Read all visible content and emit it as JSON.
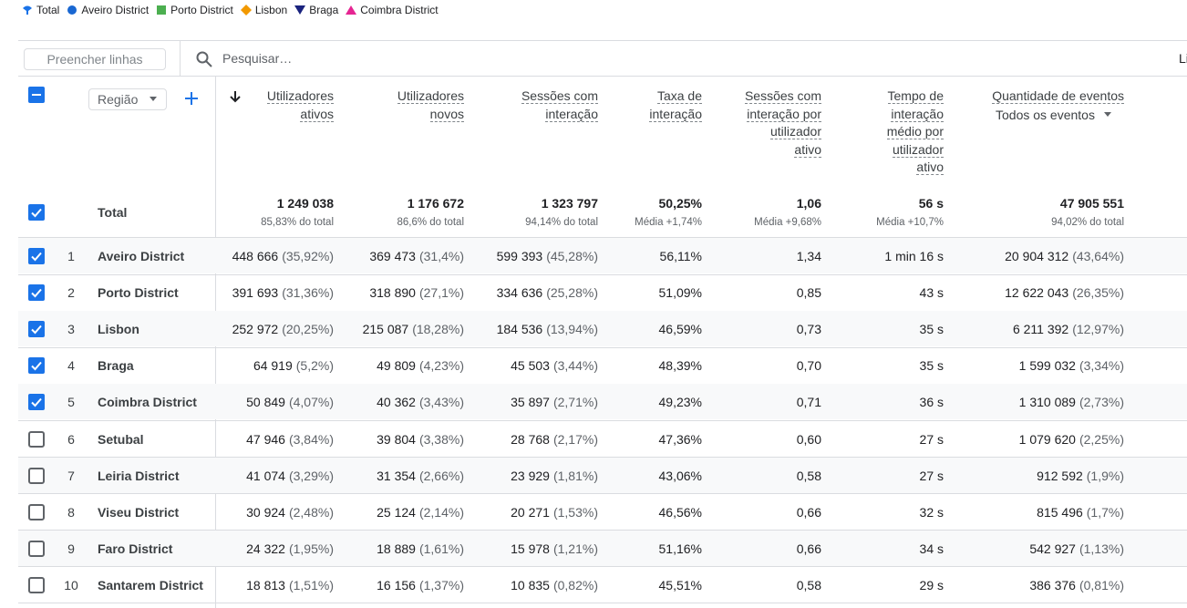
{
  "legend": [
    {
      "name": "Total",
      "color": "#1a73e8",
      "marker": "pin"
    },
    {
      "name": "Aveiro District",
      "color": "#1967d2",
      "marker": "circle"
    },
    {
      "name": "Porto District",
      "color": "#4caf50",
      "marker": "square"
    },
    {
      "name": "Lisbon",
      "color": "#f29900",
      "marker": "diamond"
    },
    {
      "name": "Braga",
      "color": "#1a237e",
      "marker": "triangle-down"
    },
    {
      "name": "Coimbra District",
      "color": "#e52592",
      "marker": "triangle-up"
    }
  ],
  "toolbar": {
    "fill_rows": "Preencher linhas",
    "search_placeholder": "Pesquisar…",
    "cut_label": "Li"
  },
  "table": {
    "dimension": "Região",
    "select_all": "indeterminate",
    "columns": [
      {
        "title": "Utilizadores ativos",
        "sorted": true
      },
      {
        "title": "Utilizadores novos"
      },
      {
        "title": "Sessões com interação"
      },
      {
        "title": "Taxa de interação"
      },
      {
        "title": "Sessões com interação por utilizador ativo"
      },
      {
        "title": "Tempo de interação médio por utilizador ativo"
      },
      {
        "title": "Quantidade de eventos",
        "subtitle": "Todos os eventos"
      }
    ],
    "totals": {
      "label": "Total",
      "checked": true,
      "cells": [
        {
          "value": "1 249 038",
          "note": "85,83% do total"
        },
        {
          "value": "1 176 672",
          "note": "86,6% do total"
        },
        {
          "value": "1 323 797",
          "note": "94,14% do total"
        },
        {
          "value": "50,25%",
          "note": "Média +1,74%"
        },
        {
          "value": "1,06",
          "note": "Média +9,68%"
        },
        {
          "value": "56 s",
          "note": "Média +10,7%"
        },
        {
          "value": "47 905 551",
          "note": "94,02% do total"
        }
      ]
    },
    "rows": [
      {
        "rank": 1,
        "name": "Aveiro District",
        "checked": true,
        "cells": [
          {
            "value": "448 666",
            "share": "(35,92%)"
          },
          {
            "value": "369 473",
            "share": "(31,4%)"
          },
          {
            "value": "599 393",
            "share": "(45,28%)"
          },
          {
            "value": "56,11%"
          },
          {
            "value": "1,34"
          },
          {
            "value": "1 min 16 s"
          },
          {
            "value": "20 904 312",
            "share": "(43,64%)"
          }
        ]
      },
      {
        "rank": 2,
        "name": "Porto District",
        "checked": true,
        "cells": [
          {
            "value": "391 693",
            "share": "(31,36%)"
          },
          {
            "value": "318 890",
            "share": "(27,1%)"
          },
          {
            "value": "334 636",
            "share": "(25,28%)"
          },
          {
            "value": "51,09%"
          },
          {
            "value": "0,85"
          },
          {
            "value": "43 s"
          },
          {
            "value": "12 622 043",
            "share": "(26,35%)"
          }
        ]
      },
      {
        "rank": 3,
        "name": "Lisbon",
        "checked": true,
        "cells": [
          {
            "value": "252 972",
            "share": "(20,25%)"
          },
          {
            "value": "215 087",
            "share": "(18,28%)"
          },
          {
            "value": "184 536",
            "share": "(13,94%)"
          },
          {
            "value": "46,59%"
          },
          {
            "value": "0,73"
          },
          {
            "value": "35 s"
          },
          {
            "value": "6 211 392",
            "share": "(12,97%)"
          }
        ]
      },
      {
        "rank": 4,
        "name": "Braga",
        "checked": true,
        "cells": [
          {
            "value": "64 919",
            "share": "(5,2%)"
          },
          {
            "value": "49 809",
            "share": "(4,23%)"
          },
          {
            "value": "45 503",
            "share": "(3,44%)"
          },
          {
            "value": "48,39%"
          },
          {
            "value": "0,70"
          },
          {
            "value": "35 s"
          },
          {
            "value": "1 599 032",
            "share": "(3,34%)"
          }
        ]
      },
      {
        "rank": 5,
        "name": "Coimbra District",
        "checked": true,
        "cells": [
          {
            "value": "50 849",
            "share": "(4,07%)"
          },
          {
            "value": "40 362",
            "share": "(3,43%)"
          },
          {
            "value": "35 897",
            "share": "(2,71%)"
          },
          {
            "value": "49,23%"
          },
          {
            "value": "0,71"
          },
          {
            "value": "36 s"
          },
          {
            "value": "1 310 089",
            "share": "(2,73%)"
          }
        ]
      },
      {
        "rank": 6,
        "name": "Setubal",
        "checked": false,
        "cells": [
          {
            "value": "47 946",
            "share": "(3,84%)"
          },
          {
            "value": "39 804",
            "share": "(3,38%)"
          },
          {
            "value": "28 768",
            "share": "(2,17%)"
          },
          {
            "value": "47,36%"
          },
          {
            "value": "0,60"
          },
          {
            "value": "27 s"
          },
          {
            "value": "1 079 620",
            "share": "(2,25%)"
          }
        ]
      },
      {
        "rank": 7,
        "name": "Leiria District",
        "checked": false,
        "cells": [
          {
            "value": "41 074",
            "share": "(3,29%)"
          },
          {
            "value": "31 354",
            "share": "(2,66%)"
          },
          {
            "value": "23 929",
            "share": "(1,81%)"
          },
          {
            "value": "43,06%"
          },
          {
            "value": "0,58"
          },
          {
            "value": "27 s"
          },
          {
            "value": "912 592",
            "share": "(1,9%)"
          }
        ]
      },
      {
        "rank": 8,
        "name": "Viseu District",
        "checked": false,
        "cells": [
          {
            "value": "30 924",
            "share": "(2,48%)"
          },
          {
            "value": "25 124",
            "share": "(2,14%)"
          },
          {
            "value": "20 271",
            "share": "(1,53%)"
          },
          {
            "value": "46,56%"
          },
          {
            "value": "0,66"
          },
          {
            "value": "32 s"
          },
          {
            "value": "815 496",
            "share": "(1,7%)"
          }
        ]
      },
      {
        "rank": 9,
        "name": "Faro District",
        "checked": false,
        "cells": [
          {
            "value": "24 322",
            "share": "(1,95%)"
          },
          {
            "value": "18 889",
            "share": "(1,61%)"
          },
          {
            "value": "15 978",
            "share": "(1,21%)"
          },
          {
            "value": "51,16%"
          },
          {
            "value": "0,66"
          },
          {
            "value": "34 s"
          },
          {
            "value": "542 927",
            "share": "(1,13%)"
          }
        ]
      },
      {
        "rank": 10,
        "name": "Santarem District",
        "checked": false,
        "cells": [
          {
            "value": "18 813",
            "share": "(1,51%)"
          },
          {
            "value": "16 156",
            "share": "(1,37%)"
          },
          {
            "value": "10 835",
            "share": "(0,82%)"
          },
          {
            "value": "45,51%"
          },
          {
            "value": "0,58"
          },
          {
            "value": "29 s"
          },
          {
            "value": "386 376",
            "share": "(0,81%)"
          }
        ]
      }
    ]
  }
}
